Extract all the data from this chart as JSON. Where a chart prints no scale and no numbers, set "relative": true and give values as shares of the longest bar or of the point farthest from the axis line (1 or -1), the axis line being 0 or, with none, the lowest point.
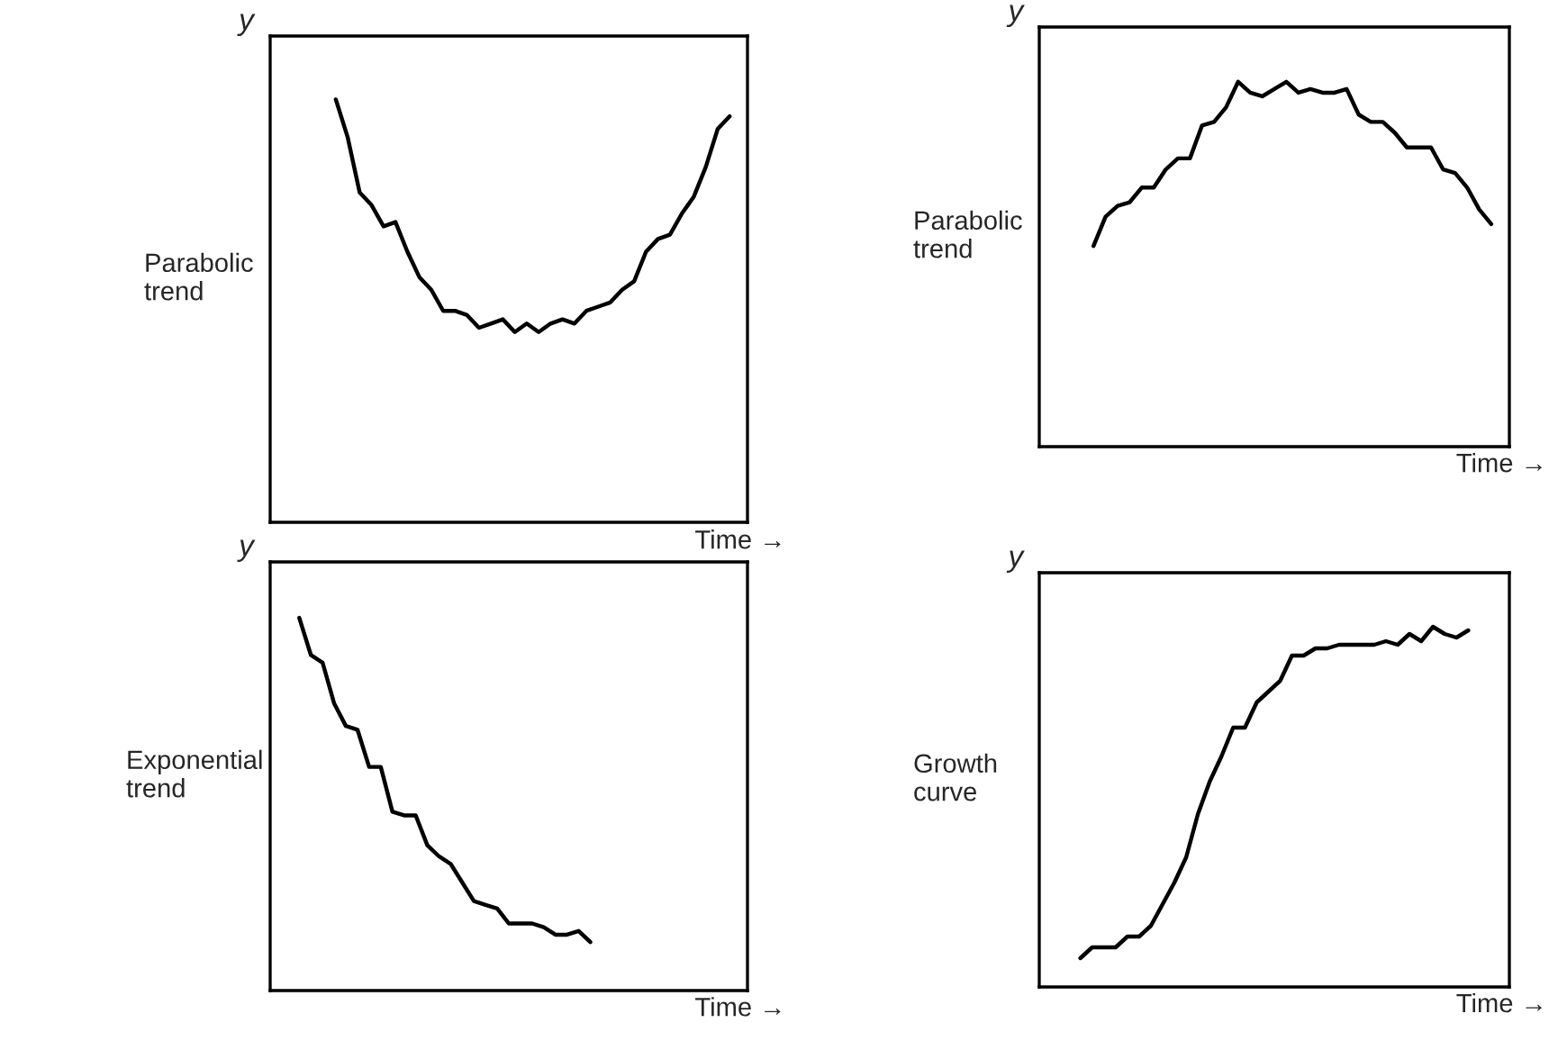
{
  "chart_data": [
    {
      "type": "line",
      "relative": true,
      "ylabel": "y",
      "xlabel": "Time →",
      "annotations": [
        "Parabolic\ntrend"
      ],
      "categories": [
        null,
        null,
        null,
        null,
        null,
        null,
        null,
        null,
        null,
        null,
        null,
        null,
        null,
        null,
        null,
        null,
        null,
        null,
        null,
        null,
        null,
        null,
        null,
        null,
        null,
        null,
        null,
        null,
        null,
        null,
        null,
        null,
        null,
        null,
        null,
        null,
        null,
        null,
        null,
        null
      ],
      "series": [
        {
          "color": "#000000",
          "values": [
            null,
            null,
            null,
            null,
            null,
            1,
            0.91,
            0.78,
            0.75,
            0.7,
            0.71,
            0.64,
            0.58,
            0.55,
            0.5,
            0.5,
            0.49,
            0.46,
            0.47,
            0.48,
            0.45,
            0.47,
            0.45,
            0.47,
            0.48,
            0.47,
            0.5,
            0.51,
            0.52,
            0.55,
            0.57,
            0.64,
            0.67,
            0.68,
            0.73,
            0.77,
            0.84,
            0.93,
            0.96,
            null
          ]
        }
      ]
    },
    {
      "type": "line",
      "relative": true,
      "ylabel": "y",
      "xlabel": "Time →",
      "annotations": [
        "Parabolic\ntrend"
      ],
      "categories": [
        null,
        null,
        null,
        null,
        null,
        null,
        null,
        null,
        null,
        null,
        null,
        null,
        null,
        null,
        null,
        null,
        null,
        null,
        null,
        null,
        null,
        null,
        null,
        null,
        null,
        null,
        null,
        null,
        null,
        null,
        null,
        null,
        null,
        null,
        null,
        null,
        null,
        null,
        null
      ],
      "series": [
        {
          "color": "#000000",
          "values": [
            null,
            null,
            null,
            null,
            0.55,
            0.63,
            0.66,
            0.67,
            0.71,
            0.71,
            0.76,
            0.79,
            0.79,
            0.88,
            0.89,
            0.93,
            1,
            0.97,
            0.96,
            0.98,
            1,
            0.97,
            0.98,
            0.97,
            0.97,
            0.98,
            0.91,
            0.89,
            0.89,
            0.86,
            0.82,
            0.82,
            0.82,
            0.76,
            0.75,
            0.71,
            0.65,
            0.61,
            null
          ]
        }
      ]
    },
    {
      "type": "line",
      "relative": true,
      "ylabel": "y",
      "xlabel": "Time →",
      "annotations": [
        "Exponential\ntrend"
      ],
      "categories": [
        null,
        null,
        null,
        null,
        null,
        null,
        null,
        null,
        null,
        null,
        null,
        null,
        null,
        null,
        null,
        null,
        null,
        null,
        null,
        null,
        null,
        null,
        null,
        null,
        null,
        null,
        null,
        null,
        null,
        null,
        null,
        null,
        null,
        null,
        null,
        null,
        null,
        null,
        null,
        null,
        null
      ],
      "series": [
        {
          "color": "#000000",
          "values": [
            null,
            null,
            1,
            0.9,
            0.88,
            0.77,
            0.71,
            0.7,
            0.6,
            0.6,
            0.48,
            0.47,
            0.47,
            0.39,
            0.36,
            0.34,
            0.29,
            0.24,
            0.23,
            0.22,
            0.18,
            0.18,
            0.18,
            0.17,
            0.15,
            0.15,
            0.16,
            0.13,
            null,
            null,
            null,
            null,
            null,
            null,
            null,
            null,
            null,
            null,
            null,
            null,
            null
          ]
        }
      ]
    },
    {
      "type": "line",
      "relative": true,
      "ylabel": "y",
      "xlabel": "Time →",
      "annotations": [
        "Growth\ncurve"
      ],
      "categories": [
        null,
        null,
        null,
        null,
        null,
        null,
        null,
        null,
        null,
        null,
        null,
        null,
        null,
        null,
        null,
        null,
        null,
        null,
        null,
        null,
        null,
        null,
        null,
        null,
        null,
        null,
        null,
        null,
        null,
        null,
        null,
        null,
        null,
        null,
        null,
        null,
        null,
        null,
        null,
        null
      ],
      "series": [
        {
          "color": "#000000",
          "values": [
            null,
            null,
            null,
            0.08,
            0.11,
            0.11,
            0.11,
            0.14,
            0.14,
            0.17,
            0.23,
            0.29,
            0.36,
            0.48,
            0.57,
            0.64,
            0.72,
            0.72,
            0.79,
            0.82,
            0.85,
            0.92,
            0.92,
            0.94,
            0.94,
            0.95,
            0.95,
            0.95,
            0.95,
            0.96,
            0.95,
            0.98,
            0.96,
            1,
            0.98,
            0.97,
            0.99,
            null,
            null,
            null
          ]
        }
      ]
    }
  ]
}
